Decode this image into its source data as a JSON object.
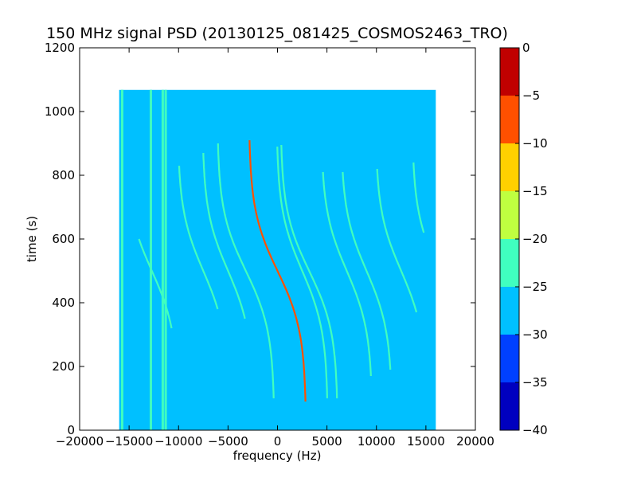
{
  "chart_data": {
    "type": "heatmap",
    "title": "150 MHz signal PSD (20130125_081425_COSMOS2463_TRO)",
    "xlabel": "frequency (Hz)",
    "ylabel": "time (s)",
    "xlim": [
      -20000,
      20000
    ],
    "ylim": [
      0,
      1200
    ],
    "xticks": [
      -20000,
      -15000,
      -10000,
      -5000,
      0,
      5000,
      10000,
      15000,
      20000
    ],
    "xtick_labels": [
      "−20000",
      "−15000",
      "−10000",
      "−5000",
      "0",
      "5000",
      "10000",
      "15000",
      "20000"
    ],
    "yticks": [
      0,
      200,
      400,
      600,
      800,
      1000,
      1200
    ],
    "ytick_labels": [
      "0",
      "200",
      "400",
      "600",
      "800",
      "1000",
      "1200"
    ],
    "data_extent": {
      "freq_min_hz": -16000,
      "freq_max_hz": 16000,
      "time_min_s": 0,
      "time_max_s": 1068
    },
    "background_level_db": -27.5,
    "colorbar": {
      "levels": [
        -40,
        -35,
        -30,
        -25,
        -20,
        -15,
        -10,
        -5,
        0
      ],
      "tick_labels": [
        "−40",
        "−35",
        "−30",
        "−25",
        "−20",
        "−15",
        "−10",
        "−5",
        "0"
      ],
      "colors": [
        "#0000bf",
        "#0040ff",
        "#00c0ff",
        "#40ffbf",
        "#bfff40",
        "#ffd000",
        "#ff5000",
        "#c00000"
      ]
    },
    "vertical_lines": [
      {
        "freq_hz": -15700,
        "time_range_s": [
          0,
          1068
        ],
        "level_db": -22
      },
      {
        "freq_hz": -12800,
        "time_range_s": [
          0,
          1068
        ],
        "level_db": -25
      },
      {
        "freq_hz": -11600,
        "time_range_s": [
          0,
          1068
        ],
        "level_db": -23
      },
      {
        "freq_hz": -11300,
        "time_range_s": [
          0,
          1068
        ],
        "level_db": -24
      }
    ],
    "doppler_traces": [
      {
        "center_hz": 0,
        "amplitude_hz": 2900,
        "time_start_s": 90,
        "time_end_s": 910,
        "level_db": -8
      },
      {
        "center_hz": -3200,
        "amplitude_hz": 2900,
        "time_start_s": 100,
        "time_end_s": 900,
        "level_db": -22
      },
      {
        "center_hz": 3200,
        "amplitude_hz": 2900,
        "time_start_s": 100,
        "time_end_s": 895,
        "level_db": -22
      },
      {
        "center_hz": 2500,
        "amplitude_hz": 2600,
        "time_start_s": 100,
        "time_end_s": 890,
        "level_db": -24
      },
      {
        "center_hz": -5000,
        "amplitude_hz": 2600,
        "time_start_s": 350,
        "time_end_s": 870,
        "level_db": -25
      },
      {
        "center_hz": 7000,
        "amplitude_hz": 2600,
        "time_start_s": 170,
        "time_end_s": 810,
        "level_db": -25
      },
      {
        "center_hz": 9000,
        "amplitude_hz": 2600,
        "time_start_s": 190,
        "time_end_s": 810,
        "level_db": -25
      },
      {
        "center_hz": 12500,
        "amplitude_hz": 2600,
        "time_start_s": 370,
        "time_end_s": 820,
        "level_db": -25
      },
      {
        "center_hz": -7500,
        "amplitude_hz": 2600,
        "time_start_s": 380,
        "time_end_s": 830,
        "level_db": -25
      },
      {
        "center_hz": -12700,
        "amplitude_hz": 2700,
        "time_start_s": 320,
        "time_end_s": 600,
        "level_db": -25
      },
      {
        "center_hz": 16300,
        "amplitude_hz": 2700,
        "time_start_s": 620,
        "time_end_s": 840,
        "level_db": -23
      }
    ]
  }
}
